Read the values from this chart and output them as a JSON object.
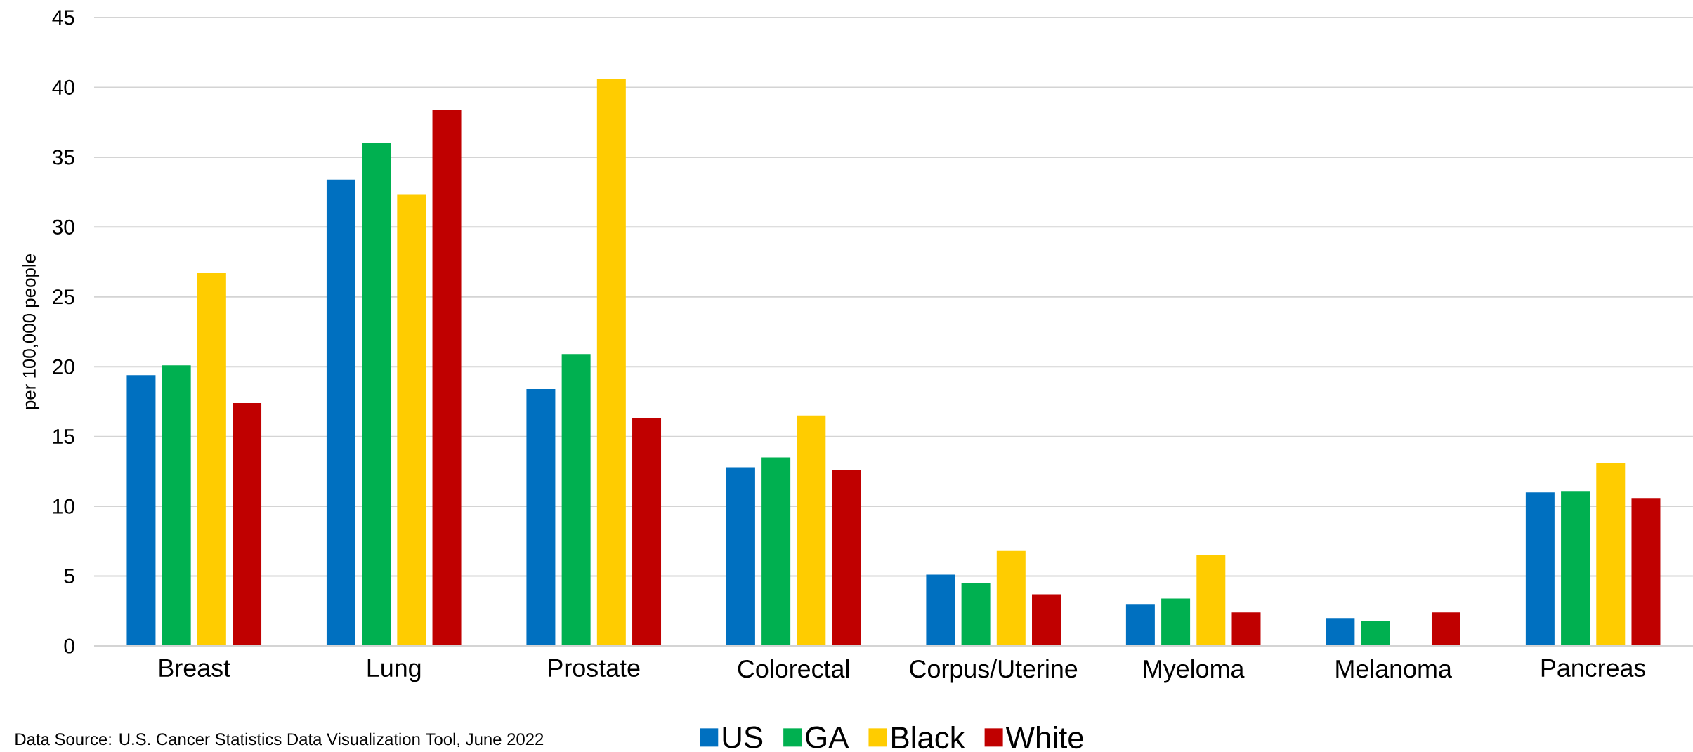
{
  "chart_data": {
    "type": "bar",
    "ylabel": "per 100,000 people",
    "categories": [
      "Breast",
      "Lung",
      "Prostate",
      "Colorectal",
      "Corpus/Uterine",
      "Myeloma",
      "Melanoma",
      "Pancreas"
    ],
    "series": [
      {
        "name": "US",
        "color": "#0070c0",
        "values": [
          19.4,
          33.4,
          18.4,
          12.8,
          5.1,
          3.0,
          2.0,
          11.0
        ]
      },
      {
        "name": "GA",
        "color": "#00b050",
        "values": [
          20.1,
          36.0,
          20.9,
          13.5,
          4.5,
          3.4,
          1.8,
          11.1
        ]
      },
      {
        "name": "Black",
        "color": "#ffcc00",
        "values": [
          26.7,
          32.3,
          40.6,
          16.5,
          6.8,
          6.5,
          null,
          13.1
        ]
      },
      {
        "name": "White",
        "color": "#c00000",
        "values": [
          17.4,
          38.4,
          16.3,
          12.6,
          3.7,
          2.4,
          2.4,
          10.6
        ]
      }
    ],
    "ylim": [
      0,
      45
    ],
    "yticks": [
      0,
      5,
      10,
      15,
      20,
      25,
      30,
      35,
      40,
      45
    ],
    "grid": "y",
    "legend": "bottom",
    "annotations": [
      "Data Source: U.S. Cancer Statistics Data Visualization Tool, June 2022"
    ]
  }
}
